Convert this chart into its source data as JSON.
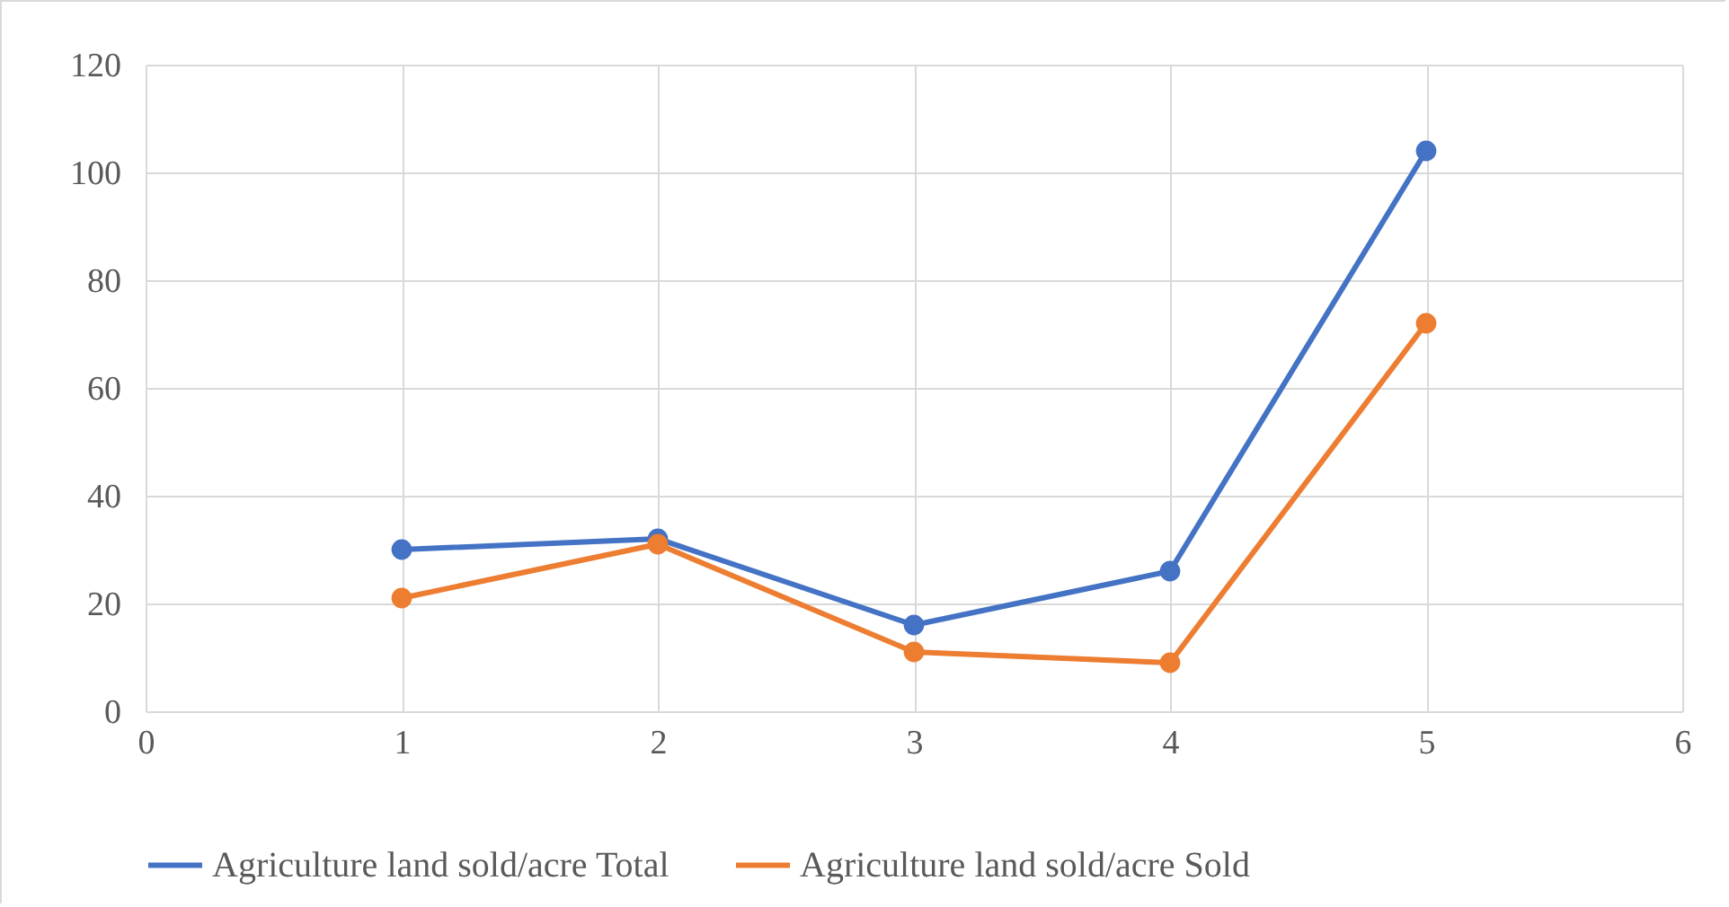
{
  "chart_data": {
    "type": "line",
    "x": [
      1,
      2,
      3,
      4,
      5
    ],
    "series": [
      {
        "name": "Agriculture land sold/acre Total",
        "color": "#4472c4",
        "values": [
          30,
          32,
          16,
          26,
          104
        ]
      },
      {
        "name": "Agriculture land sold/acre Sold",
        "color": "#ed7d31",
        "values": [
          21,
          31,
          11,
          9,
          72
        ]
      }
    ],
    "xlim": [
      0,
      6
    ],
    "xticks": [
      0,
      1,
      2,
      3,
      4,
      5,
      6
    ],
    "ylim": [
      0,
      120
    ],
    "yticks": [
      0,
      20,
      40,
      60,
      80,
      100,
      120
    ],
    "grid": true,
    "legend": "bottom",
    "marker": "circle",
    "line_style": "solid"
  }
}
